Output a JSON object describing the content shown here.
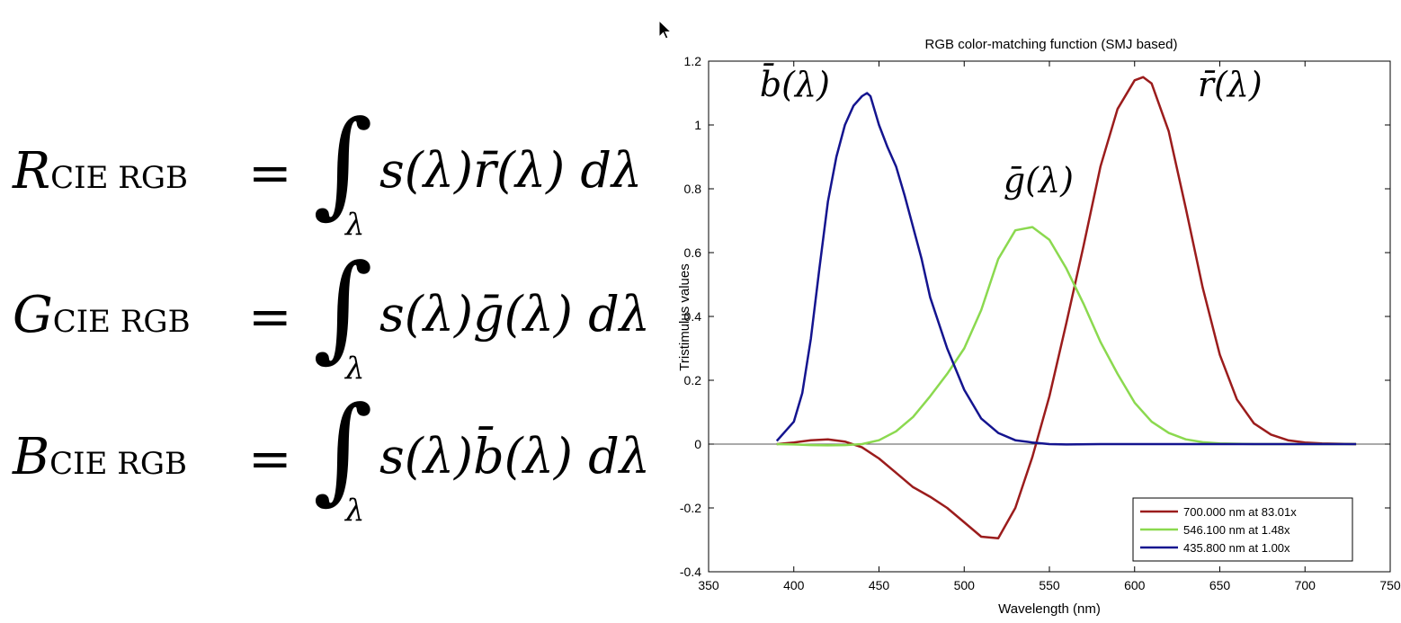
{
  "equations": [
    {
      "lhs_var": "R",
      "lhs_sub": "CIE RGB",
      "equals": "=",
      "integral": "∫",
      "limit": "λ",
      "rhs": "s(λ)r̄(λ) dλ"
    },
    {
      "lhs_var": "G",
      "lhs_sub": "CIE RGB",
      "equals": "=",
      "integral": "∫",
      "limit": "λ",
      "rhs": "s(λ)ḡ(λ) dλ"
    },
    {
      "lhs_var": "B",
      "lhs_sub": "CIE RGB",
      "equals": "=",
      "integral": "∫",
      "limit": "λ",
      "rhs": "s(λ)b̄(λ) dλ"
    }
  ],
  "chart_data": {
    "type": "line",
    "title": "RGB color-matching function (SMJ based)",
    "xlabel": "Wavelength (nm)",
    "ylabel": "Tristimulus values",
    "xlim": [
      350,
      750
    ],
    "ylim": [
      -0.4,
      1.2
    ],
    "xticks": [
      350,
      400,
      450,
      500,
      550,
      600,
      650,
      700,
      750
    ],
    "yticks": [
      -0.4,
      -0.2,
      0,
      0.2,
      0.4,
      0.6,
      0.8,
      1,
      1.2
    ],
    "ytick_labels": [
      "-0.4",
      "-0.2",
      "0",
      "0.2",
      "0.4",
      "0.6",
      "0.8",
      "1",
      "1.2"
    ],
    "grid": false,
    "legend_position": "lower-right",
    "annotations": [
      {
        "text": "b̄(λ)",
        "x": 380,
        "y": 1.09
      },
      {
        "text": "ḡ(λ)",
        "x": 523,
        "y": 0.79
      },
      {
        "text": "r̄(λ)",
        "x": 637,
        "y": 1.09
      }
    ],
    "series": [
      {
        "name": "700.000 nm at 83.01x",
        "color": "#9b1c1c",
        "x": [
          390,
          400,
          410,
          420,
          430,
          440,
          450,
          460,
          470,
          480,
          490,
          500,
          510,
          520,
          530,
          540,
          550,
          560,
          570,
          580,
          590,
          600,
          605,
          610,
          620,
          630,
          640,
          650,
          660,
          670,
          680,
          690,
          700,
          710,
          720,
          730
        ],
        "y": [
          0.0,
          0.005,
          0.012,
          0.015,
          0.008,
          -0.01,
          -0.045,
          -0.09,
          -0.135,
          -0.165,
          -0.2,
          -0.245,
          -0.29,
          -0.295,
          -0.2,
          -0.04,
          0.15,
          0.38,
          0.62,
          0.87,
          1.05,
          1.14,
          1.15,
          1.13,
          0.98,
          0.74,
          0.49,
          0.28,
          0.14,
          0.065,
          0.03,
          0.012,
          0.005,
          0.002,
          0.001,
          0.0
        ]
      },
      {
        "name": "546.100 nm at  1.48x",
        "color": "#8bd94f",
        "x": [
          390,
          400,
          410,
          420,
          430,
          440,
          450,
          460,
          470,
          480,
          490,
          500,
          510,
          520,
          530,
          540,
          550,
          560,
          570,
          580,
          590,
          600,
          610,
          620,
          630,
          640,
          650,
          660,
          670,
          680,
          690,
          700,
          710,
          720,
          730
        ],
        "y": [
          0.0,
          -0.001,
          -0.003,
          -0.004,
          -0.003,
          0.0,
          0.012,
          0.04,
          0.085,
          0.15,
          0.22,
          0.3,
          0.42,
          0.58,
          0.67,
          0.68,
          0.64,
          0.55,
          0.44,
          0.32,
          0.22,
          0.13,
          0.07,
          0.035,
          0.015,
          0.006,
          0.002,
          0.001,
          0.0,
          0.0,
          0.0,
          0.0,
          0.0,
          0.0,
          0.0
        ]
      },
      {
        "name": "435.800 nm at  1.00x",
        "color": "#14148f",
        "x": [
          390,
          395,
          400,
          405,
          410,
          415,
          420,
          425,
          430,
          435,
          440,
          443,
          445,
          450,
          455,
          460,
          465,
          470,
          475,
          480,
          490,
          500,
          510,
          520,
          530,
          540,
          550,
          560,
          580,
          600,
          650,
          700,
          730
        ],
        "y": [
          0.01,
          0.04,
          0.07,
          0.16,
          0.33,
          0.55,
          0.76,
          0.9,
          1.0,
          1.06,
          1.09,
          1.1,
          1.09,
          1.0,
          0.93,
          0.87,
          0.78,
          0.68,
          0.58,
          0.46,
          0.3,
          0.17,
          0.08,
          0.035,
          0.012,
          0.005,
          0.0,
          -0.001,
          0.0,
          0.0,
          0.0,
          0.0,
          0.0
        ]
      }
    ]
  }
}
